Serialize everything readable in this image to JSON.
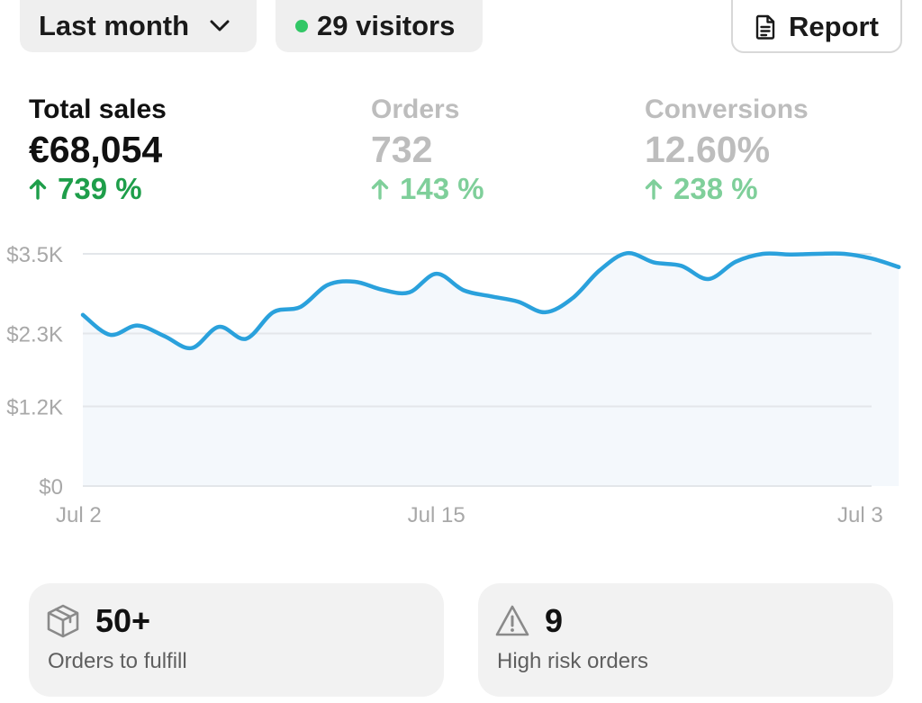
{
  "filters": {
    "date_range": "Last month",
    "visitors": "29 visitors",
    "report_label": "Report",
    "visitors_dot_color": "#32c766"
  },
  "metrics": [
    {
      "label": "Total sales",
      "value": "€68,054",
      "change": "739 %",
      "active": true
    },
    {
      "label": "Orders",
      "value": "732",
      "change": "143 %",
      "active": false
    },
    {
      "label": "Conversions",
      "value": "12.60%",
      "change": "238 %",
      "active": false
    }
  ],
  "chart_data": {
    "type": "area",
    "title": "Total sales",
    "series": [
      {
        "name": "Total sales",
        "x": [
          2,
          3,
          4,
          5,
          6,
          7,
          8,
          9,
          10,
          11,
          12,
          13,
          14,
          15,
          16,
          17,
          18,
          19,
          20,
          21,
          22,
          23,
          24,
          25,
          26,
          27,
          28,
          29,
          30,
          31,
          32
        ],
        "values": [
          2580,
          2280,
          2420,
          2260,
          2080,
          2400,
          2220,
          2620,
          2700,
          3030,
          3080,
          2960,
          2920,
          3200,
          2950,
          2860,
          2780,
          2620,
          2830,
          3250,
          3510,
          3370,
          3320,
          3120,
          3380,
          3500,
          3490,
          3500,
          3500,
          3430,
          3300
        ]
      }
    ],
    "x_tick_labels": [
      "Jul 2",
      "Jul 15",
      "Jul 3"
    ],
    "y_tick_labels": [
      "$3.5K",
      "$2.3K",
      "$1.2K",
      "$0"
    ],
    "y_ticks": [
      3500,
      2300,
      1200,
      0
    ],
    "xlim": [
      2,
      31
    ],
    "ylim": [
      0,
      3500
    ],
    "grid": true,
    "line_color": "#2aa1dc",
    "fill_color": "#f4f8fc",
    "grid_color": "#e3e6ea"
  },
  "cards": [
    {
      "value": "50+",
      "label": "Orders to fulfill",
      "icon": "package-icon"
    },
    {
      "value": "9",
      "label": "High risk orders",
      "icon": "warning-icon"
    }
  ]
}
